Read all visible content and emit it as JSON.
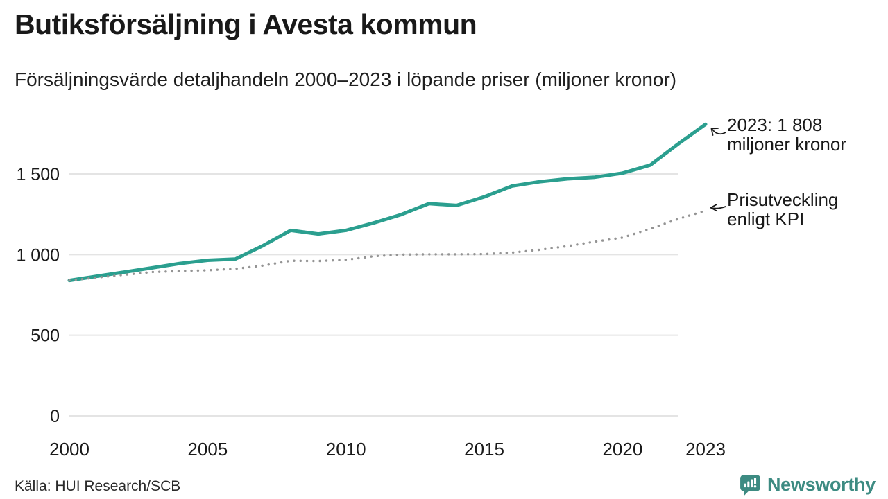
{
  "header": {
    "title": "Butiksförsäljning i Avesta kommun",
    "subtitle": "Försäljningsvärde detaljhandeln 2000–2023 i löpande priser (miljoner kronor)"
  },
  "annotations": {
    "sales": {
      "line1": "2023: 1 808",
      "line2": "miljoner kronor"
    },
    "kpi": {
      "line1": "Prisutveckling",
      "line2": "enligt KPI"
    }
  },
  "footer": {
    "source": "Källa: HUI Research/SCB",
    "brand": "Newsworthy"
  },
  "colors": {
    "sales_line": "#2b9f8f",
    "kpi_dots": "#949494",
    "grid": "#e4e4e4",
    "brand": "#3d8b82",
    "text": "#1a1a1a"
  },
  "chart_data": {
    "type": "line",
    "title": "Butiksförsäljning i Avesta kommun",
    "subtitle": "Försäljningsvärde detaljhandeln 2000–2023 i löpande priser (miljoner kronor)",
    "xlabel": "",
    "ylabel": "miljoner kronor",
    "x": [
      2000,
      2001,
      2002,
      2003,
      2004,
      2005,
      2006,
      2007,
      2008,
      2009,
      2010,
      2011,
      2012,
      2013,
      2014,
      2015,
      2016,
      2017,
      2018,
      2019,
      2020,
      2021,
      2022,
      2023
    ],
    "series": [
      {
        "name": "Försäljningsvärde i löpande priser",
        "style": "solid",
        "color": "#2b9f8f",
        "values": [
          840,
          866,
          892,
          918,
          945,
          965,
          972,
          1055,
          1150,
          1128,
          1150,
          1196,
          1248,
          1316,
          1305,
          1358,
          1425,
          1452,
          1470,
          1480,
          1505,
          1555,
          1685,
          1808
        ]
      },
      {
        "name": "Prisutveckling enligt KPI",
        "style": "dotted",
        "color": "#949494",
        "values": [
          840,
          858,
          875,
          892,
          898,
          903,
          912,
          932,
          962,
          960,
          968,
          990,
          1000,
          1002,
          1002,
          1003,
          1012,
          1030,
          1052,
          1080,
          1105,
          1160,
          1220,
          1272
        ]
      }
    ],
    "xtick_years": [
      2000,
      2005,
      2010,
      2015,
      2020,
      2023
    ],
    "xtick_labels": [
      "2000",
      "2005",
      "2010",
      "2015",
      "2020",
      "2023"
    ],
    "yticks": [
      0,
      500,
      1000,
      1500
    ],
    "ytick_labels": [
      "0",
      "500",
      "1 000",
      "1 500"
    ],
    "ylim": [
      0,
      1810
    ],
    "xlim": [
      2000,
      2023
    ],
    "grid": "horizontal",
    "legend": "inline-annotations",
    "annotation_sales_value": "2023: 1 808 miljoner kronor",
    "annotation_kpi": "Prisutveckling enligt KPI"
  }
}
